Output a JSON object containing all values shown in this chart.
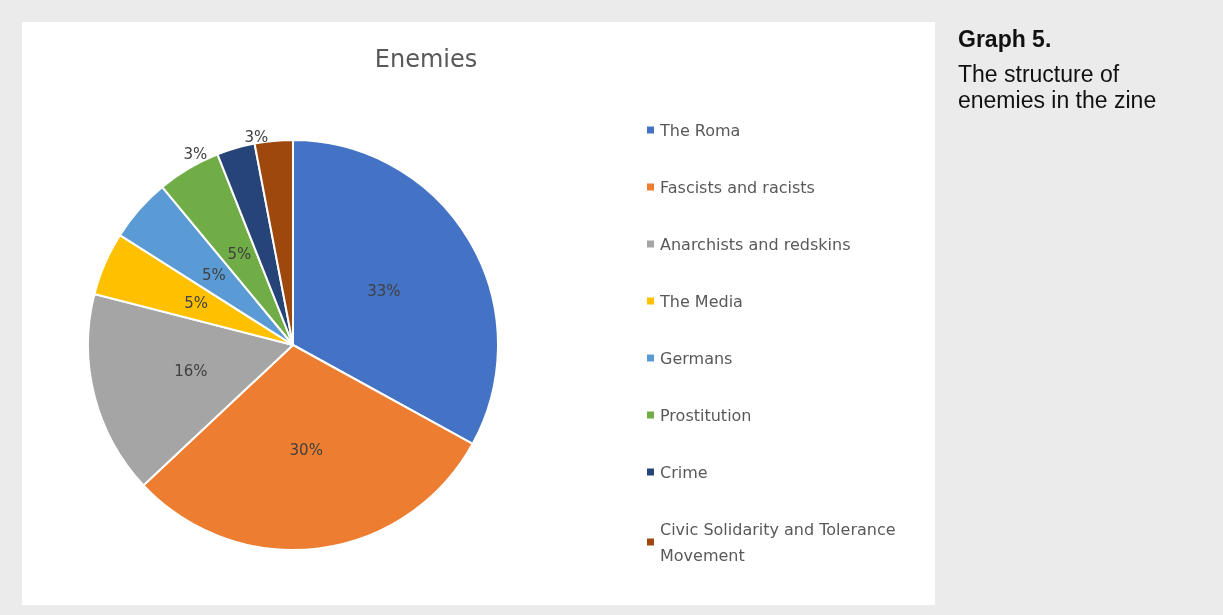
{
  "chart_data": {
    "type": "pie",
    "title": "Enemies",
    "categories": [
      "The Roma",
      "Fascists and racists",
      "Anarchists and redskins",
      "The Media",
      "Germans",
      "Prostitution",
      "Crime",
      "Civic Solidarity and Tolerance Movement"
    ],
    "values": [
      33,
      30,
      16,
      5,
      5,
      5,
      3,
      3
    ],
    "colors": [
      "#4472c4",
      "#ed7d31",
      "#a5a5a5",
      "#ffc000",
      "#5b9bd5",
      "#70ad47",
      "#264478",
      "#9e480e"
    ],
    "legend": "right",
    "value_labels": [
      "33%",
      "30%",
      "16%",
      "5%",
      "5%",
      "5%",
      "3%",
      "3%"
    ],
    "annotations": [
      "Graph 5.",
      "The structure of enemies in the zine"
    ]
  }
}
